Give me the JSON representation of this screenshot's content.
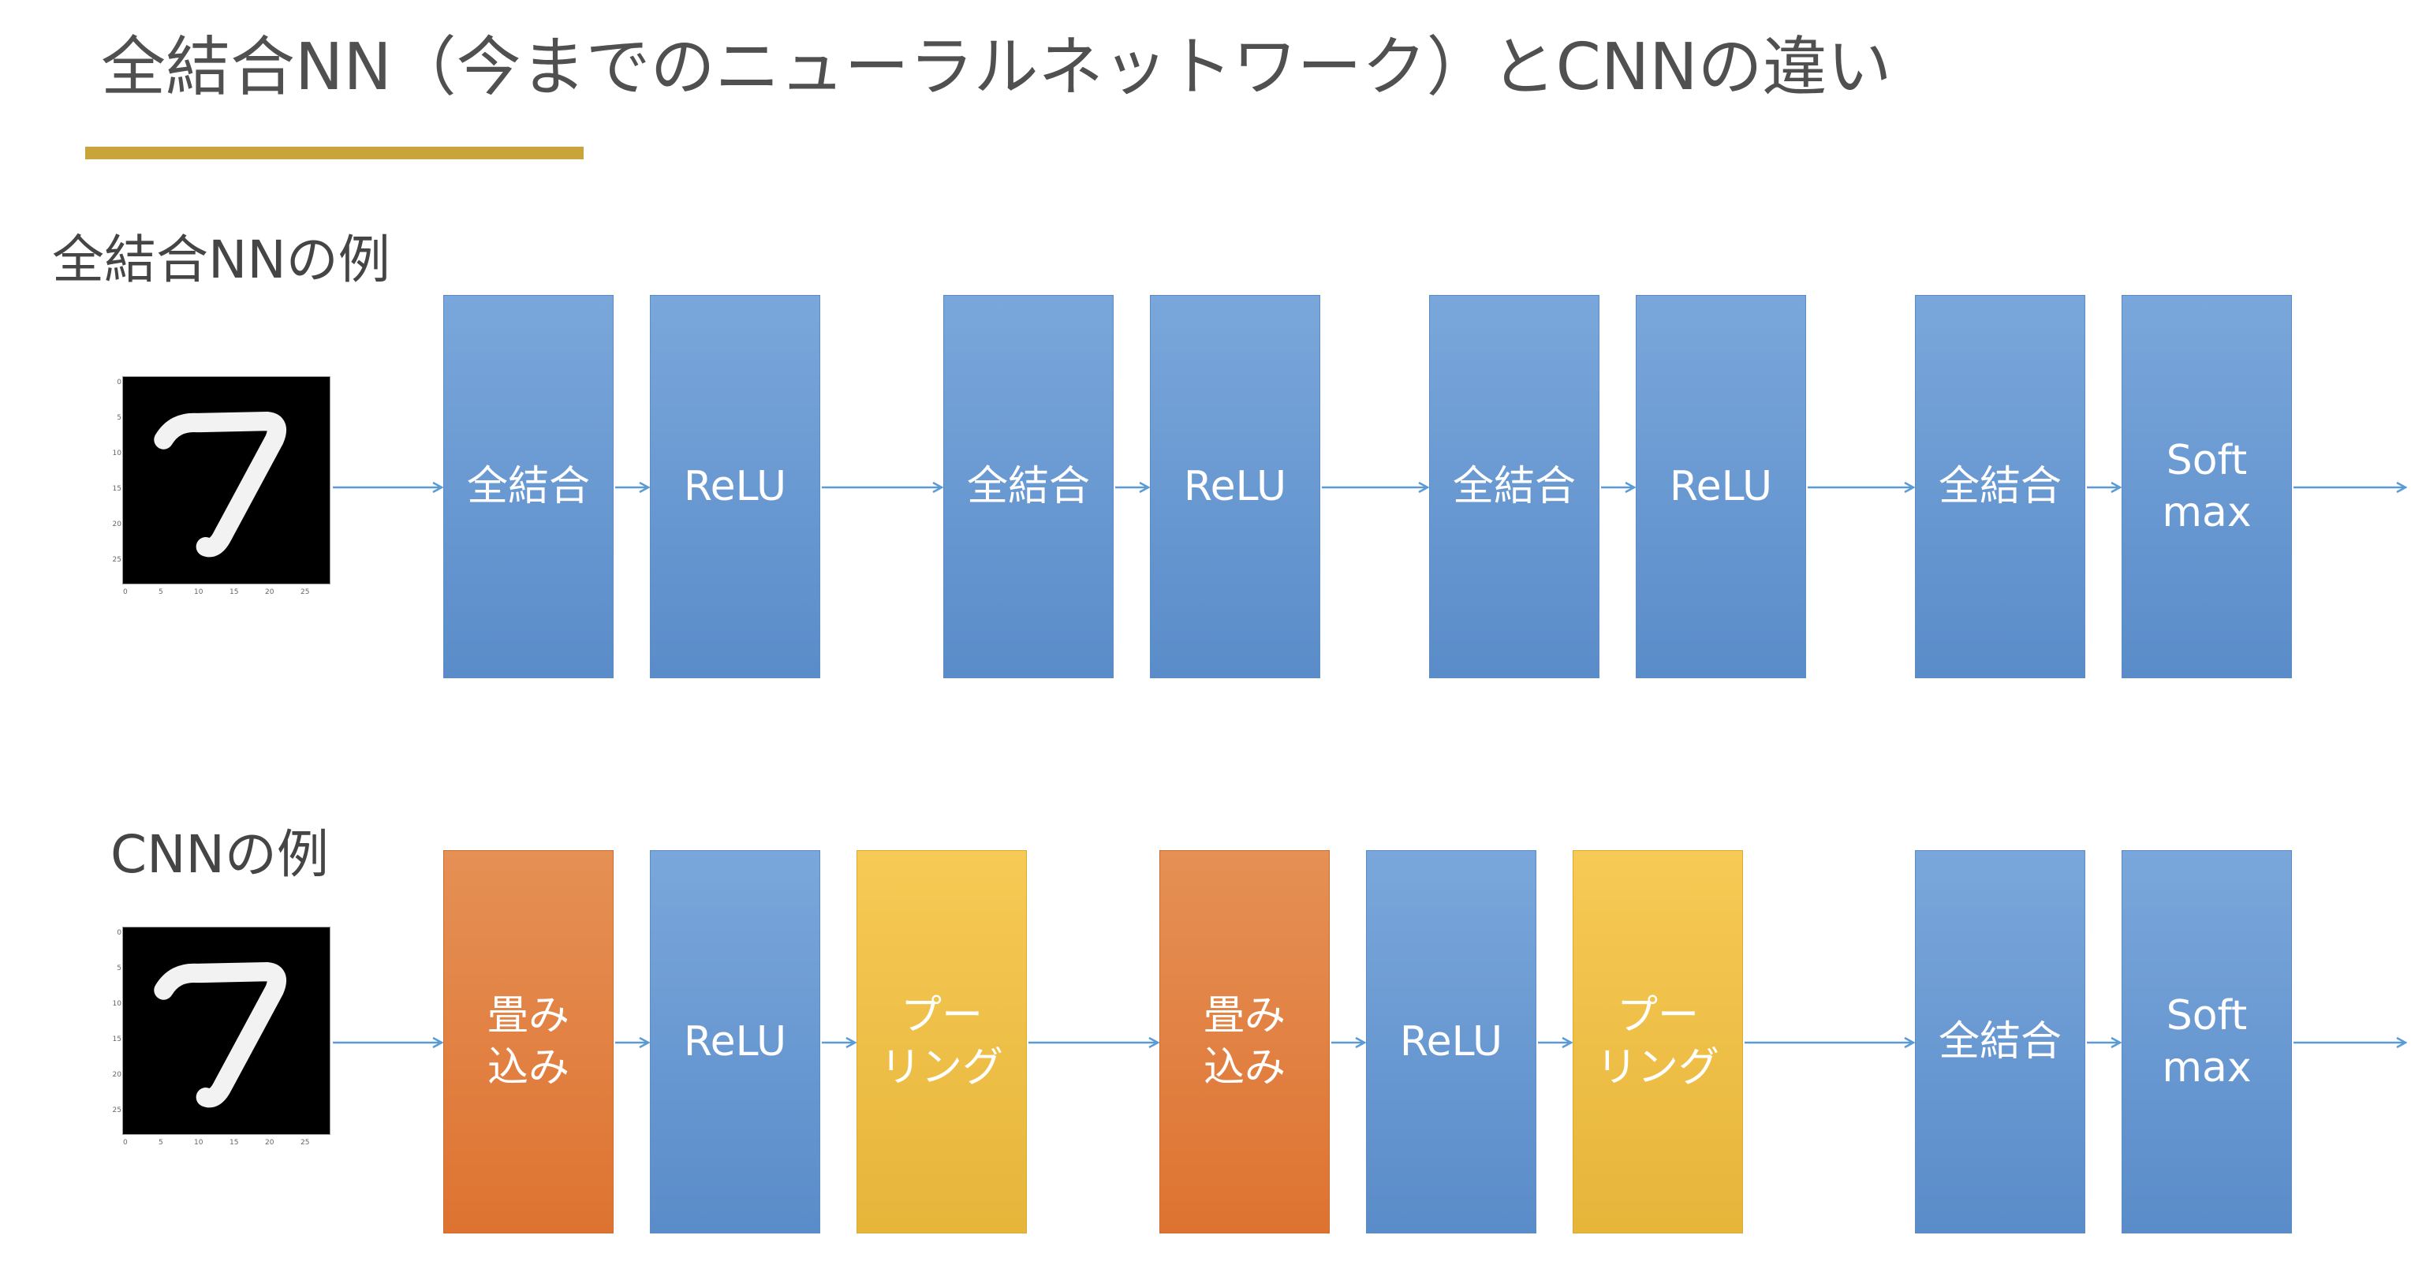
{
  "title": "全結合NN（今までのニューラルネットワーク）とCNNの違い",
  "colors": {
    "accent_bar": "#c9a43a",
    "fc_layer": "#6c9bd3",
    "conv_layer": "#e07b3c",
    "pool_layer": "#f2c14b",
    "arrow": "#5b9bd5"
  },
  "fc_section": {
    "label": "全結合NNの例",
    "input_digit": "7",
    "layers": [
      {
        "text": "全結合",
        "kind": "fc"
      },
      {
        "text": "ReLU",
        "kind": "fc"
      },
      {
        "text": "全結合",
        "kind": "fc"
      },
      {
        "text": "ReLU",
        "kind": "fc"
      },
      {
        "text": "全結合",
        "kind": "fc"
      },
      {
        "text": "ReLU",
        "kind": "fc"
      },
      {
        "text": "全結合",
        "kind": "fc"
      },
      {
        "text": "Soft\nmax",
        "kind": "fc"
      }
    ]
  },
  "cnn_section": {
    "label": "CNNの例",
    "input_digit": "7",
    "layers": [
      {
        "text": "畳み\n込み",
        "kind": "conv"
      },
      {
        "text": "ReLU",
        "kind": "fc"
      },
      {
        "text": "プー\nリング",
        "kind": "pool"
      },
      {
        "text": "畳み\n込み",
        "kind": "conv"
      },
      {
        "text": "ReLU",
        "kind": "fc"
      },
      {
        "text": "プー\nリング",
        "kind": "pool"
      },
      {
        "text": "全結合",
        "kind": "fc"
      },
      {
        "text": "Soft\nmax",
        "kind": "fc"
      }
    ]
  },
  "digit_axis": {
    "y_ticks": [
      "0",
      "5",
      "10",
      "15",
      "20",
      "25"
    ],
    "x_ticks": [
      "0",
      "5",
      "10",
      "15",
      "20",
      "25"
    ]
  }
}
